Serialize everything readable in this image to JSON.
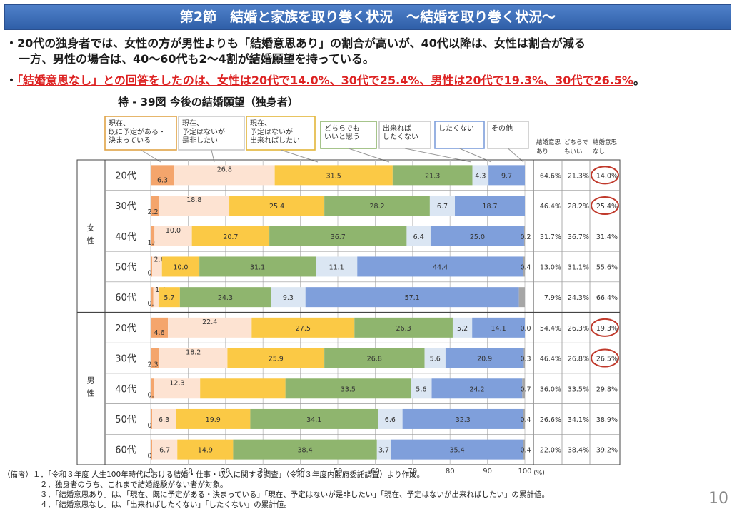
{
  "header": {
    "title": "第2節　結婚と家族を取り巻く状況　～結婚を取り巻く状況～"
  },
  "bullets": {
    "b1_line1": "・20代の独身者では、女性の方が男性よりも「結婚意思あり」の割合が高いが、40代以降は、女性は割合が減る",
    "b1_line2": "一方、男性の場合は、40～60代も2～4割が結婚願望を持っている。",
    "b2_prefix": "・",
    "b2_red": "「結婚意思なし」との回答をしたのは、女性は20代で14.0%、30代で25.4%、男性は20代で19.3%、30代で26.5%",
    "b2_suffix": "。"
  },
  "figure_title": "特 - 39図 今後の結婚願望（独身者）",
  "category_labels": [
    "現在、\n既に予定がある・\n決まっている",
    "現在、\n予定はないが\n是非したい",
    "現在、\n予定はないが\n出来ればしたい",
    "どちらでも\nいいと思う",
    "出来れば\nしたくない",
    "したくない",
    "その他"
  ],
  "summary_headers": [
    "結婚意思\nあり",
    "どちらで\nもいい",
    "結婚意思\nなし"
  ],
  "colors": [
    "#f4a56c",
    "#fde3d2",
    "#fbc945",
    "#8fb56e",
    "#dbe6f3",
    "#7f9fdb",
    "#a6a6a6"
  ],
  "circle_color": "#c0392b",
  "chart_data": {
    "type": "bar",
    "orientation": "horizontal-stacked",
    "title": "特 - 39図 今後の結婚願望（独身者）",
    "xlim": [
      0,
      100
    ],
    "x_ticks": [
      "0",
      "10",
      "20",
      "30",
      "40",
      "50",
      "60",
      "70",
      "80",
      "90",
      "100"
    ],
    "x_unit": "(%)",
    "series_names": [
      "現在、既に予定がある・決まっている",
      "現在、予定はないが是非したい",
      "現在、予定はないが出来ればしたい",
      "どちらでもいいと思う",
      "出来ればしたくない",
      "したくない",
      "その他"
    ],
    "groups": [
      {
        "name": "女性",
        "rows": [
          {
            "age": "20代",
            "values": [
              6.3,
              26.8,
              31.5,
              21.3,
              4.3,
              9.7,
              0.0
            ],
            "labels": [
              "6.3",
              "26.8",
              "31.5",
              "21.3",
              "4.3",
              "9.7",
              ""
            ],
            "summary": [
              "64.6%",
              "21.3%",
              "14.0%"
            ],
            "circled": true
          },
          {
            "age": "30代",
            "values": [
              2.2,
              18.8,
              25.4,
              28.2,
              6.7,
              18.7,
              0.0
            ],
            "labels": [
              "2.2",
              "18.8",
              "25.4",
              "28.2",
              "6.7",
              "18.7",
              ""
            ],
            "summary": [
              "46.4%",
              "28.2%",
              "25.4%"
            ],
            "circled": true
          },
          {
            "age": "40代",
            "values": [
              1.0,
              10.0,
              20.7,
              36.7,
              6.4,
              25.0,
              0.2
            ],
            "labels": [
              "1.0",
              "10.0",
              "20.7",
              "36.7",
              "6.4",
              "25.0",
              "0.2"
            ],
            "summary": [
              "31.7%",
              "36.7%",
              "31.4%"
            ],
            "circled": false
          },
          {
            "age": "50代",
            "values": [
              0.4,
              2.6,
              10.0,
              31.1,
              11.1,
              44.4,
              0.4
            ],
            "labels": [
              "0.4",
              "2.6",
              "10.0",
              "31.1",
              "11.1",
              "44.4",
              "0.4"
            ],
            "summary": [
              "13.0%",
              "31.1%",
              "55.6%"
            ],
            "circled": false
          },
          {
            "age": "60代",
            "values": [
              0.7,
              1.4,
              5.7,
              24.3,
              9.3,
              57.1,
              1.6
            ],
            "labels": [
              "0.7",
              "1.4",
              "5.7",
              "24.3",
              "9.3",
              "57.1",
              ""
            ],
            "summary": [
              "7.9%",
              "24.3%",
              "66.4%"
            ],
            "circled": false
          }
        ]
      },
      {
        "name": "男性",
        "rows": [
          {
            "age": "20代",
            "values": [
              4.6,
              22.4,
              27.5,
              26.3,
              5.2,
              14.1,
              0.0
            ],
            "labels": [
              "4.6",
              "22.4",
              "27.5",
              "26.3",
              "5.2",
              "14.1",
              "0.0"
            ],
            "summary": [
              "54.4%",
              "26.3%",
              "19.3%"
            ],
            "circled": true
          },
          {
            "age": "30代",
            "values": [
              2.3,
              18.2,
              25.9,
              26.8,
              5.6,
              20.9,
              0.3
            ],
            "labels": [
              "2.3",
              "18.2",
              "25.9",
              "26.8",
              "5.6",
              "20.9",
              "0.3"
            ],
            "summary": [
              "46.4%",
              "26.8%",
              "26.5%"
            ],
            "circled": true
          },
          {
            "age": "40代",
            "values": [
              0.9,
              12.3,
              22.8,
              33.5,
              5.6,
              24.2,
              0.7
            ],
            "labels": [
              "0.9",
              "12.3",
              "",
              "33.5",
              "5.6",
              "24.2",
              "0.7"
            ],
            "summary": [
              "36.0%",
              "33.5%",
              "29.8%"
            ],
            "circled": false
          },
          {
            "age": "50代",
            "values": [
              0.4,
              6.3,
              19.9,
              34.1,
              6.6,
              32.3,
              0.4
            ],
            "labels": [
              "0.4",
              "6.3",
              "19.9",
              "34.1",
              "6.6",
              "32.3",
              "0.4"
            ],
            "summary": [
              "26.6%",
              "34.1%",
              "38.9%"
            ],
            "circled": false
          },
          {
            "age": "60代",
            "values": [
              0.4,
              6.7,
              14.9,
              38.4,
              3.7,
              35.4,
              0.4
            ],
            "labels": [
              "0.4",
              "6.7",
              "14.9",
              "38.4",
              "3.7",
              "35.4",
              "0.4"
            ],
            "summary": [
              "22.0%",
              "38.4%",
              "39.2%"
            ],
            "circled": false
          }
        ]
      }
    ]
  },
  "notes": [
    "（備考）１．「令和３年度 人生100年時代における結婚・仕事・収入に関する調査」（令和３年度内閣府委託調査）より作成。",
    "２．独身者のうち、これまで結婚経験がない者が対象。",
    "３．「結婚意思あり」は、「現在、既に予定がある・決まっている」「現在、予定はないが是非したい」「現在、予定はないが出来ればしたい」の累計値。",
    "４．「結婚意思なし」は、「出来ればしたくない」「したくない」の累計値。"
  ],
  "page_number": "10"
}
